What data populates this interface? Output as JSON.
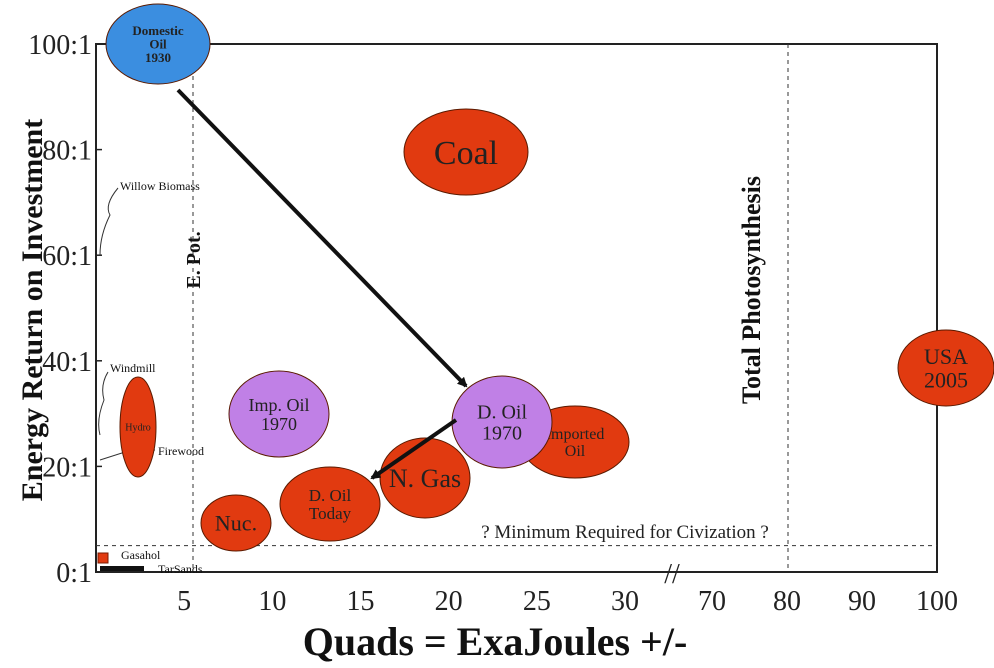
{
  "chart_data": {
    "type": "scatter",
    "title": "",
    "xlabel": "Quads = ExaJoules +/-",
    "ylabel": "Energy Return on Investment",
    "x_ticks": [
      "5",
      "10",
      "15",
      "20",
      "25",
      "30",
      "70",
      "80",
      "90",
      "100"
    ],
    "y_ticks": [
      "0:1",
      "20:1",
      "40:1",
      "60:1",
      "80:1",
      "100:1"
    ],
    "ylim": [
      0,
      100
    ],
    "axis_break_mark": "//",
    "grid": false,
    "bubbles": [
      {
        "label": "Domestic Oil 1930",
        "lines": [
          "Domestic",
          "Oil",
          "1930"
        ],
        "x": 3.5,
        "y": 100,
        "color": "#3b8ee0"
      },
      {
        "label": "Coal",
        "lines": [
          "Coal"
        ],
        "x": 20,
        "y": 80,
        "color": "#e13a10"
      },
      {
        "label": "USA 2005",
        "lines": [
          "USA",
          "2005"
        ],
        "x": 101,
        "y": 40,
        "color": "#e13a10"
      },
      {
        "label": "Imp. Oil 1970",
        "lines": [
          "Imp. Oil",
          "1970"
        ],
        "x": 9.5,
        "y": 30,
        "color": "#c080e6"
      },
      {
        "label": "D. Oil 1970",
        "lines": [
          "D. Oil",
          "1970"
        ],
        "x": 23,
        "y": 29,
        "color": "#c080e6"
      },
      {
        "label": "Imported Oil",
        "lines": [
          "Imported",
          "Oil"
        ],
        "x": 27,
        "y": 25,
        "color": "#e13a10"
      },
      {
        "label": "N. Gas",
        "lines": [
          "N. Gas"
        ],
        "x": 19,
        "y": 18,
        "color": "#e13a10"
      },
      {
        "label": "D. Oil Today",
        "lines": [
          "D. Oil",
          "Today"
        ],
        "x": 14.5,
        "y": 13,
        "color": "#e13a10"
      },
      {
        "label": "Nuc.",
        "lines": [
          "Nuc."
        ],
        "x": 8.5,
        "y": 9,
        "color": "#e13a10"
      },
      {
        "label": "Hydro",
        "lines": [
          "Hydro"
        ],
        "x": 2.5,
        "y": 28,
        "color": "#e13a10"
      }
    ],
    "arrows": [
      {
        "from": "Domestic Oil 1930",
        "to": "D. Oil 1970"
      },
      {
        "from": "D. Oil 1970",
        "to": "D. Oil Today"
      }
    ],
    "reference_lines": [
      {
        "label": "? Minimum Required for Civization ?",
        "orientation": "horizontal",
        "y": 5
      },
      {
        "label": "E. Pot.",
        "orientation": "vertical",
        "x": 6
      },
      {
        "label": "Total Photosynthesis",
        "orientation": "vertical",
        "x": 80
      }
    ],
    "small_labels": [
      {
        "label": "Willow Biomass",
        "y_range": [
          60,
          80
        ]
      },
      {
        "label": "Windmill",
        "y_range": [
          25,
          40
        ]
      },
      {
        "label": "Firewood",
        "y_range": [
          20,
          30
        ]
      },
      {
        "label": "Gasahol",
        "y": 3
      },
      {
        "label": "TarSands",
        "y": 1
      }
    ]
  }
}
